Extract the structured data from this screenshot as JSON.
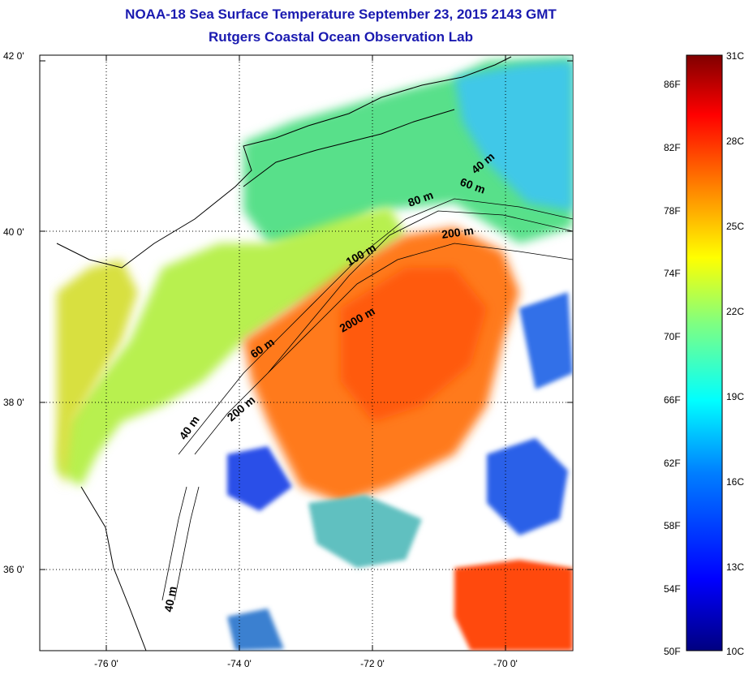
{
  "title": "NOAA-18 Sea Surface Temperature September 23, 2015 2143 GMT",
  "subtitle": "Rutgers Coastal Ocean Observation Lab",
  "lat_ticks": [
    "42 0'",
    "40 0'",
    "38 0'",
    "36 0'"
  ],
  "lon_ticks": [
    "-76 0'",
    "-74 0'",
    "-72 0'",
    "-70 0'"
  ],
  "contour_labels": [
    "40 m",
    "60 m",
    "80 m",
    "200 m",
    "100 m",
    "2000 m",
    "60 m",
    "200 m",
    "40 m",
    "40 m"
  ],
  "colorbar": {
    "fahrenheit": [
      "86F",
      "82F",
      "78F",
      "74F",
      "70F",
      "66F",
      "62F",
      "58F",
      "54F",
      "50F"
    ],
    "celsius": [
      "31C",
      "28C",
      "25C",
      "22C",
      "19C",
      "16C",
      "13C",
      "10C"
    ],
    "colors": [
      "#800000",
      "#ff0000",
      "#ff8000",
      "#ffff00",
      "#80ff80",
      "#00ffff",
      "#0080ff",
      "#0000ff",
      "#000080"
    ]
  }
}
